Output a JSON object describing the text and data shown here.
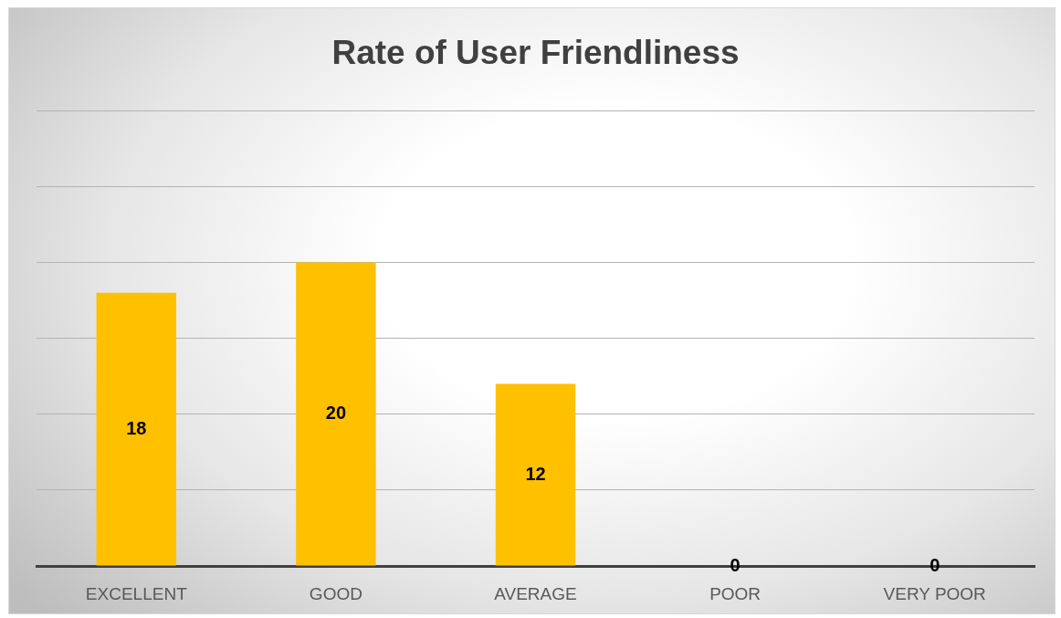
{
  "chart_data": {
    "type": "bar",
    "title": "Rate of User Friendliness",
    "categories": [
      "EXCELLENT",
      "GOOD",
      "AVERAGE",
      "POOR",
      "VERY POOR"
    ],
    "values": [
      18,
      20,
      12,
      0,
      0
    ],
    "color": "#ffc000",
    "ylim": [
      0,
      30
    ],
    "yticks": [
      {
        "value": 0,
        "label": null
      },
      {
        "value": 5,
        "label": null
      },
      {
        "value": 10,
        "label": null
      },
      {
        "value": 15,
        "label": null
      },
      {
        "value": 20,
        "label": null
      },
      {
        "value": 25,
        "label": null
      },
      {
        "value": 30,
        "label": null
      }
    ],
    "tick_labels": "x",
    "grid": "y",
    "data_labels": true
  }
}
